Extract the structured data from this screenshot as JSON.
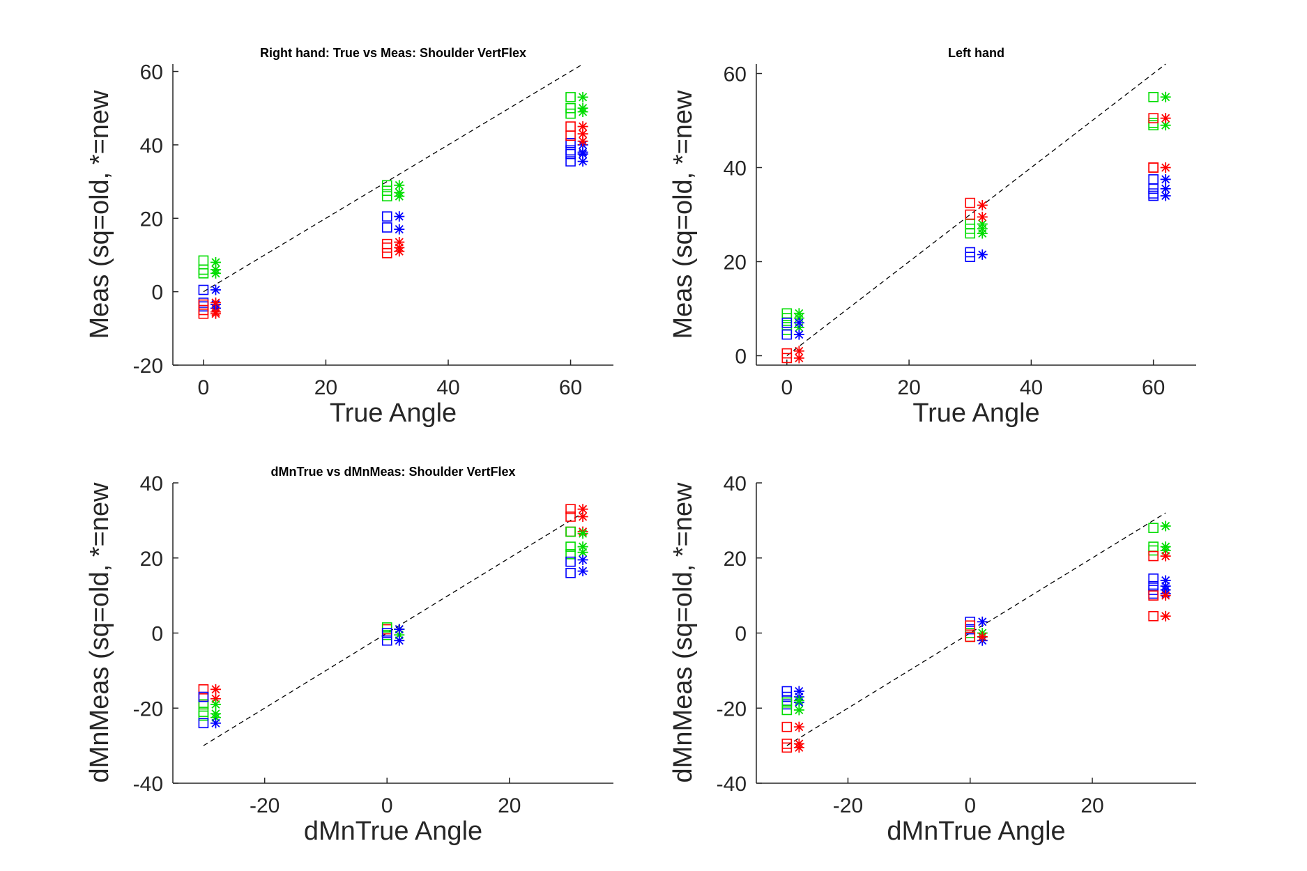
{
  "colors": {
    "red": "#ff0000",
    "green": "#00dd00",
    "blue": "#0000ff"
  },
  "chart_data": [
    {
      "type": "scatter",
      "title": "Right hand: True vs Meas: Shoulder VertFlex",
      "xlabel": "True Angle",
      "ylabel": "Meas (sq=old, *=new",
      "xlim": [
        -5,
        67
      ],
      "ylim": [
        -20,
        62
      ],
      "xticks": [
        0,
        20,
        40,
        60
      ],
      "yticks": [
        -20,
        0,
        20,
        40,
        60
      ],
      "reference_line": {
        "x": [
          0,
          62
        ],
        "y": [
          0,
          62
        ]
      },
      "markers": {
        "square": "old",
        "asterisk": "new"
      },
      "series": [
        {
          "color": "green",
          "marker": "square",
          "x": [
            0,
            0,
            0,
            30,
            30,
            30,
            60,
            60,
            60
          ],
          "y": [
            8.5,
            6,
            5,
            29,
            27.5,
            26,
            53,
            50,
            48.5
          ]
        },
        {
          "color": "green",
          "marker": "asterisk",
          "x": [
            2,
            2,
            2,
            32,
            32,
            32,
            62,
            62,
            62
          ],
          "y": [
            8,
            6,
            5,
            29,
            27,
            26,
            53,
            50,
            49
          ]
        },
        {
          "color": "blue",
          "marker": "square",
          "x": [
            0,
            0,
            0,
            30,
            30,
            60,
            60,
            60,
            60
          ],
          "y": [
            0.5,
            -3,
            -4,
            20.5,
            17.5,
            40.5,
            38.5,
            37.5,
            35.5
          ]
        },
        {
          "color": "blue",
          "marker": "asterisk",
          "x": [
            2,
            2,
            2,
            32,
            32,
            62,
            62,
            62,
            62
          ],
          "y": [
            0.5,
            -3.5,
            -4.5,
            20.5,
            17,
            40,
            38,
            37.5,
            35.5
          ]
        },
        {
          "color": "red",
          "marker": "square",
          "x": [
            0,
            0,
            0,
            30,
            30,
            30,
            60,
            60
          ],
          "y": [
            -3.5,
            -5,
            -6,
            13,
            12,
            10.5,
            45,
            42.5
          ]
        },
        {
          "color": "red",
          "marker": "asterisk",
          "x": [
            2,
            2,
            2,
            32,
            32,
            32,
            62,
            62,
            62
          ],
          "y": [
            -3,
            -5.5,
            -6,
            13.5,
            12,
            11,
            45,
            43,
            41
          ]
        }
      ]
    },
    {
      "type": "scatter",
      "title": "Left hand",
      "xlabel": "True Angle",
      "ylabel": "Meas (sq=old, *=new",
      "xlim": [
        -5,
        67
      ],
      "ylim": [
        -2,
        62
      ],
      "xticks": [
        0,
        20,
        40,
        60
      ],
      "yticks": [
        0,
        20,
        40,
        60
      ],
      "reference_line": {
        "x": [
          0,
          62
        ],
        "y": [
          0,
          62
        ]
      },
      "markers": {
        "square": "old",
        "asterisk": "new"
      },
      "series": [
        {
          "color": "green",
          "marker": "square",
          "x": [
            0,
            0,
            0,
            0,
            30,
            30,
            30,
            60,
            60,
            60
          ],
          "y": [
            9,
            8,
            6.5,
            5.5,
            28,
            27,
            26,
            55,
            49.5,
            49
          ]
        },
        {
          "color": "green",
          "marker": "asterisk",
          "x": [
            2,
            2,
            2,
            32,
            32,
            32,
            62,
            62
          ],
          "y": [
            9,
            8,
            6,
            28,
            27,
            26,
            55,
            49
          ]
        },
        {
          "color": "blue",
          "marker": "square",
          "x": [
            0,
            0,
            30,
            30,
            60,
            60,
            60,
            60
          ],
          "y": [
            7,
            4.5,
            22,
            21,
            37.5,
            35.5,
            34.5,
            34
          ]
        },
        {
          "color": "blue",
          "marker": "asterisk",
          "x": [
            2,
            2,
            32,
            62,
            62,
            62
          ],
          "y": [
            7,
            4.5,
            21.5,
            37.5,
            35.5,
            34
          ]
        },
        {
          "color": "red",
          "marker": "square",
          "x": [
            0,
            0,
            30,
            30,
            60,
            60,
            60
          ],
          "y": [
            0.5,
            -0.5,
            32.5,
            30,
            50.5,
            40,
            40
          ]
        },
        {
          "color": "red",
          "marker": "asterisk",
          "x": [
            2,
            2,
            32,
            32,
            62,
            62
          ],
          "y": [
            1,
            -0.5,
            32,
            29.5,
            50.5,
            40
          ]
        }
      ]
    },
    {
      "type": "scatter",
      "title": "dMnTrue vs dMnMeas: Shoulder VertFlex",
      "xlabel": "dMnTrue Angle",
      "ylabel": "dMnMeas (sq=old, *=new",
      "xlim": [
        -35,
        37
      ],
      "ylim": [
        -40,
        40
      ],
      "xticks": [
        -20,
        0,
        20
      ],
      "yticks": [
        -40,
        -20,
        0,
        20,
        40
      ],
      "reference_line": {
        "x": [
          -30,
          32
        ],
        "y": [
          -30,
          32
        ]
      },
      "markers": {
        "square": "old",
        "asterisk": "new"
      },
      "series": [
        {
          "color": "red",
          "marker": "square",
          "x": [
            -30,
            -30,
            -30,
            0,
            30,
            30,
            30
          ],
          "y": [
            -15,
            -17,
            -19,
            1,
            33,
            31,
            27
          ]
        },
        {
          "color": "red",
          "marker": "asterisk",
          "x": [
            -28,
            -28,
            2,
            32,
            32,
            32
          ],
          "y": [
            -15,
            -17.5,
            1,
            33,
            31,
            27
          ]
        },
        {
          "color": "green",
          "marker": "square",
          "x": [
            -30,
            -30,
            -30,
            0,
            0,
            30,
            30,
            30
          ],
          "y": [
            -19,
            -21,
            -22,
            1.5,
            -0.5,
            27,
            23,
            21
          ]
        },
        {
          "color": "green",
          "marker": "asterisk",
          "x": [
            -28,
            -28,
            -28,
            2,
            2,
            32,
            32,
            32
          ],
          "y": [
            -19,
            -21.5,
            -22.5,
            1,
            -0.5,
            26.5,
            23,
            21.5
          ]
        },
        {
          "color": "blue",
          "marker": "square",
          "x": [
            -30,
            -30,
            0,
            0,
            30,
            30
          ],
          "y": [
            -17,
            -24,
            0,
            -2,
            19,
            16
          ]
        },
        {
          "color": "blue",
          "marker": "asterisk",
          "x": [
            -28,
            2,
            2,
            32,
            32
          ],
          "y": [
            -24,
            1,
            -2,
            19.5,
            16.5
          ]
        }
      ]
    },
    {
      "type": "scatter",
      "title": "",
      "xlabel": "dMnTrue Angle",
      "ylabel": "dMnMeas (sq=old, *=new",
      "xlim": [
        -35,
        37
      ],
      "ylim": [
        -40,
        40
      ],
      "xticks": [
        -20,
        0,
        20
      ],
      "yticks": [
        -40,
        -20,
        0,
        20,
        40
      ],
      "reference_line": {
        "x": [
          -30,
          32
        ],
        "y": [
          -30,
          32
        ]
      },
      "markers": {
        "square": "old",
        "asterisk": "new"
      },
      "series": [
        {
          "color": "blue",
          "marker": "square",
          "x": [
            -30,
            -30,
            -30,
            -30,
            0,
            0,
            30,
            30,
            30,
            30
          ],
          "y": [
            -15.5,
            -17,
            -18,
            -19,
            3,
            1,
            14.5,
            12.5,
            11.5,
            10.5
          ]
        },
        {
          "color": "blue",
          "marker": "asterisk",
          "x": [
            -28,
            -28,
            -28,
            2,
            2,
            32,
            32,
            32,
            32
          ],
          "y": [
            -15.5,
            -17,
            -18.5,
            3,
            -2,
            14,
            12.5,
            11.5,
            10.5
          ]
        },
        {
          "color": "green",
          "marker": "square",
          "x": [
            -30,
            -30,
            0,
            0,
            30,
            30,
            30
          ],
          "y": [
            -18.5,
            -20.5,
            0,
            -1,
            28,
            23,
            22
          ]
        },
        {
          "color": "green",
          "marker": "asterisk",
          "x": [
            -28,
            -28,
            2,
            2,
            32,
            32,
            32
          ],
          "y": [
            -18,
            -20.5,
            0,
            -1,
            28.5,
            23,
            22
          ]
        },
        {
          "color": "red",
          "marker": "square",
          "x": [
            -30,
            -30,
            -30,
            0,
            0,
            30,
            30,
            30
          ],
          "y": [
            -25,
            -29.5,
            -30.5,
            2,
            -1,
            20.5,
            10,
            4.5
          ]
        },
        {
          "color": "red",
          "marker": "asterisk",
          "x": [
            -28,
            -28,
            -28,
            2,
            32,
            32,
            32
          ],
          "y": [
            -25,
            -29.5,
            -30.5,
            -1,
            20.5,
            10,
            4.5
          ]
        }
      ]
    }
  ]
}
